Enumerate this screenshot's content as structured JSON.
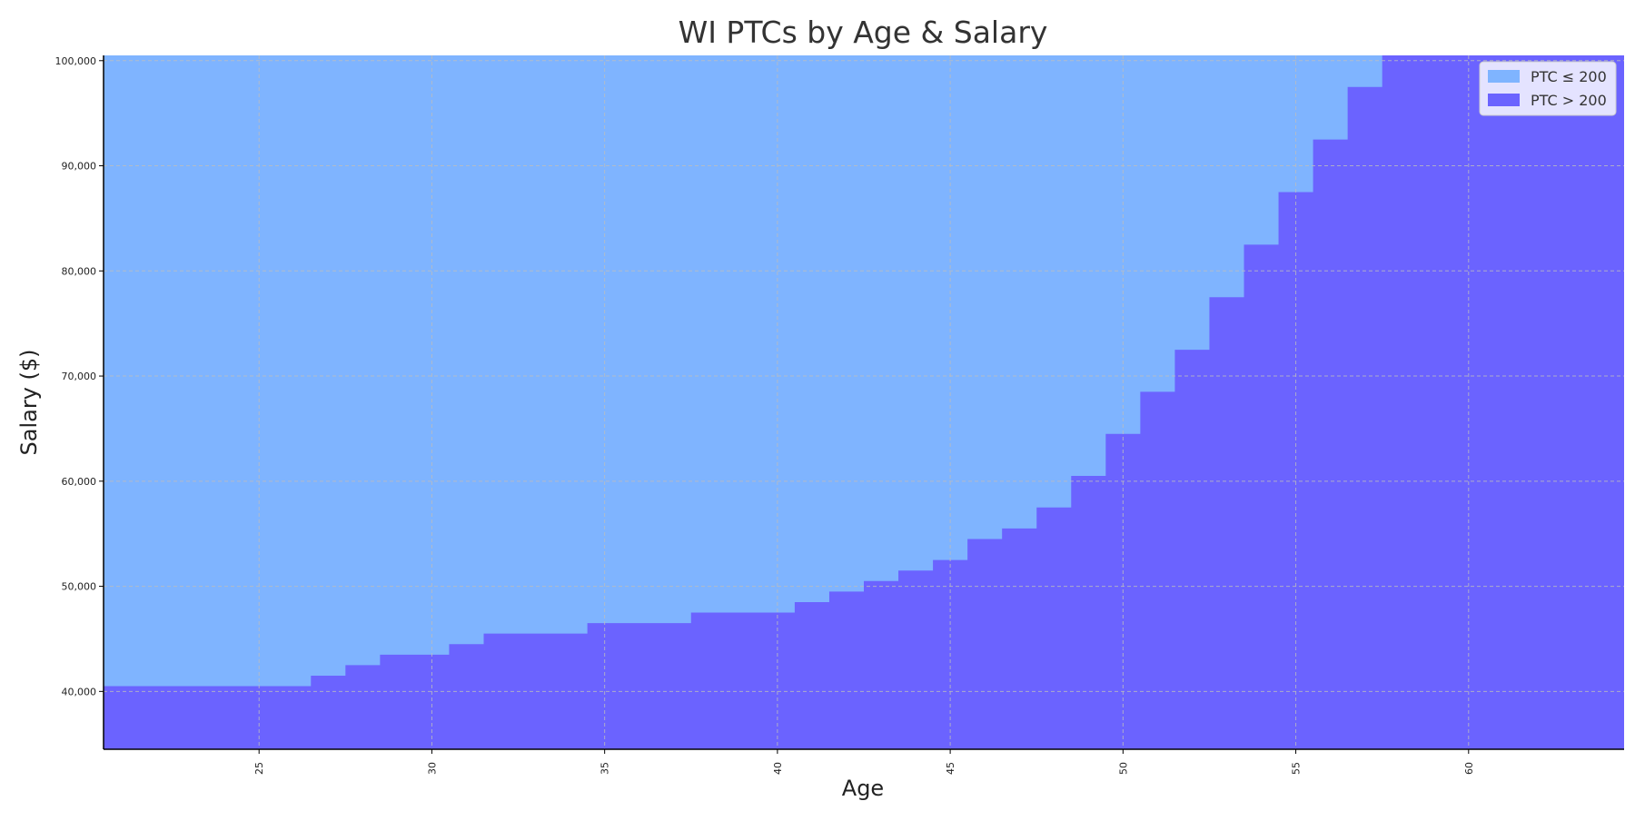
{
  "chart_data": {
    "type": "area",
    "title": "WI PTCs by Age & Salary",
    "xlabel": "Age",
    "ylabel": "Salary ($)",
    "xlim": [
      20.5,
      64.5
    ],
    "ylim": [
      34500,
      100500
    ],
    "x_ticks": [
      25,
      30,
      35,
      40,
      45,
      50,
      55,
      60
    ],
    "y_ticks": [
      40000,
      50000,
      60000,
      70000,
      80000,
      90000,
      100000
    ],
    "y_tick_labels": [
      "40,000",
      "50,000",
      "60,000",
      "70,000",
      "80,000",
      "90,000",
      "100,000"
    ],
    "grid": true,
    "legend_position": "top-right",
    "ages": [
      21,
      22,
      23,
      24,
      25,
      26,
      27,
      28,
      29,
      30,
      31,
      32,
      33,
      34,
      35,
      36,
      37,
      38,
      39,
      40,
      41,
      42,
      43,
      44,
      45,
      46,
      47,
      48,
      49,
      50,
      51,
      52,
      53,
      54,
      55,
      56,
      57,
      58,
      59,
      60,
      61,
      62,
      63,
      64
    ],
    "threshold_salary": [
      40500,
      40500,
      40500,
      40500,
      40500,
      40500,
      41500,
      42500,
      43500,
      43500,
      44500,
      45500,
      45500,
      45500,
      46500,
      46500,
      46500,
      47500,
      47500,
      47500,
      48500,
      49500,
      50500,
      51500,
      52500,
      54500,
      55500,
      57500,
      60500,
      64500,
      68500,
      72500,
      77500,
      82500,
      87500,
      92500,
      97500,
      100500,
      100500,
      100500,
      100500,
      100500,
      100500,
      100500
    ],
    "series": [
      {
        "name": "PTC ≤ 200",
        "color": "#7FB4FF"
      },
      {
        "name": "PTC > 200",
        "color": "#6B63FF"
      }
    ]
  }
}
